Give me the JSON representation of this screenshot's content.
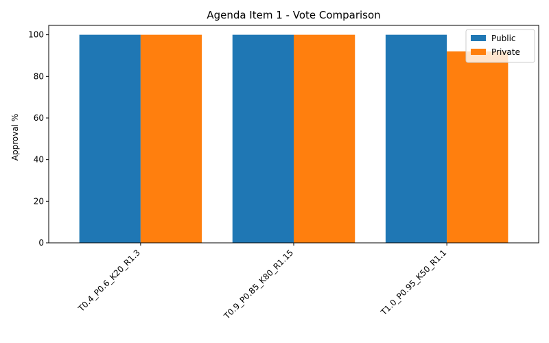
{
  "chart_data": {
    "type": "bar",
    "title": "Agenda Item 1 - Vote Comparison",
    "xlabel": "",
    "ylabel": "Approval %",
    "categories": [
      "T0.4_P0.6_K20_R1.3",
      "T0.9_P0.85_K80_R1.15",
      "T1.0_P0.95_K50_R1.1"
    ],
    "series": [
      {
        "name": "Public",
        "values": [
          100,
          100,
          100
        ],
        "color": "#1f77b4"
      },
      {
        "name": "Private",
        "values": [
          100,
          100,
          92
        ],
        "color": "#ff7f0e"
      }
    ],
    "ylim": [
      0,
      104.5
    ],
    "yticks": [
      0,
      20,
      40,
      60,
      80,
      100
    ],
    "grid": false,
    "legend_position": "top-right"
  }
}
